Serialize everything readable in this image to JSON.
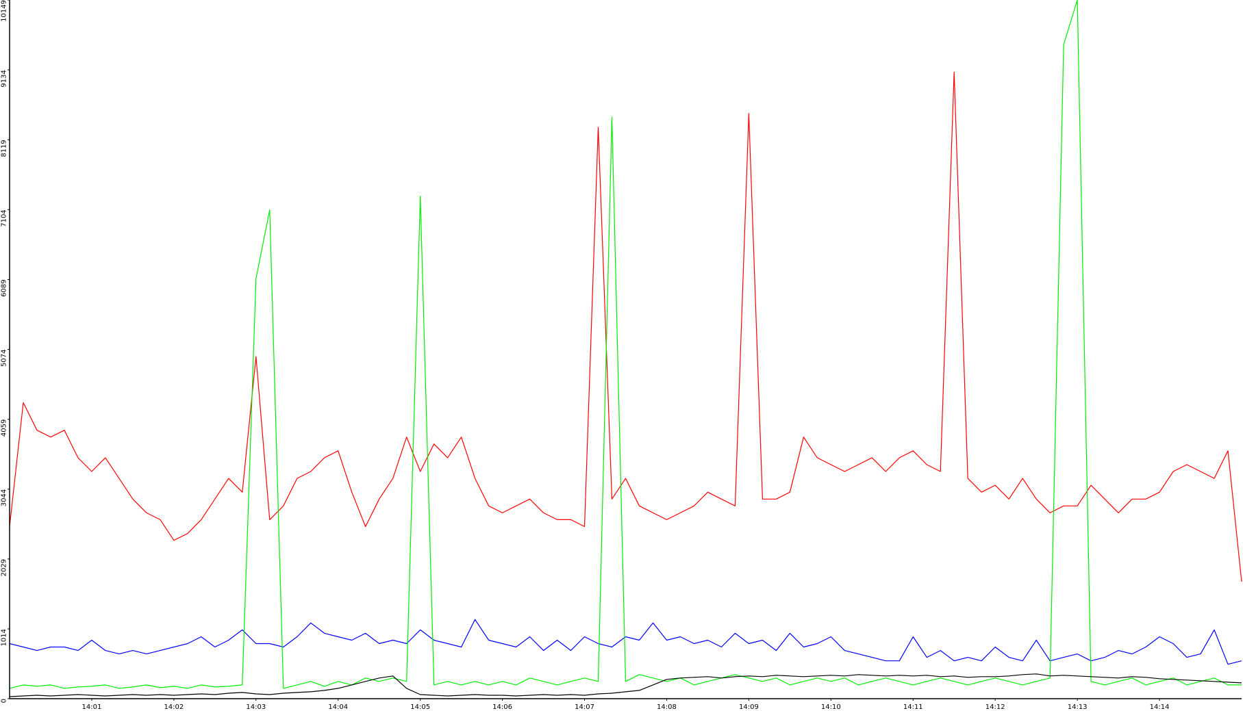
{
  "chart_data": {
    "type": "line",
    "categories": [
      null,
      null,
      null,
      null,
      null,
      null,
      "14:01",
      null,
      null,
      null,
      null,
      null,
      "14:02",
      null,
      null,
      null,
      null,
      null,
      "14:03",
      null,
      null,
      null,
      null,
      null,
      "14:04",
      null,
      null,
      null,
      null,
      null,
      "14:05",
      null,
      null,
      null,
      null,
      null,
      "14:06",
      null,
      null,
      null,
      null,
      null,
      "14:07",
      null,
      null,
      null,
      null,
      null,
      "14:08",
      null,
      null,
      null,
      null,
      null,
      "14:09",
      null,
      null,
      null,
      null,
      null,
      "14:10",
      null,
      null,
      null,
      null,
      null,
      "14:11",
      null,
      null,
      null,
      null,
      null,
      "14:12",
      null,
      null,
      null,
      null,
      null,
      "14:13",
      null,
      null,
      null,
      null,
      null,
      "14:14",
      null,
      null,
      null,
      null,
      null,
      null
    ],
    "ylim": [
      0,
      10149
    ],
    "yticks": [
      0,
      1014,
      2029,
      3044,
      4059,
      5074,
      6089,
      7104,
      8119,
      9134,
      10149
    ],
    "series": [
      {
        "color": "#ff0000",
        "values": [
          2500,
          4300,
          3900,
          3800,
          3900,
          3500,
          3300,
          3500,
          3200,
          2900,
          2700,
          2600,
          2300,
          2400,
          2600,
          2900,
          3200,
          3000,
          4970,
          2600,
          2800,
          3200,
          3300,
          3500,
          3600,
          3000,
          2500,
          2900,
          3200,
          3800,
          3300,
          3700,
          3500,
          3800,
          3200,
          2800,
          2700,
          2800,
          2900,
          2700,
          2600,
          2600,
          2500,
          8300,
          2900,
          3200,
          2800,
          2700,
          2600,
          2700,
          2800,
          3000,
          2900,
          2800,
          8500,
          2900,
          2900,
          3000,
          3800,
          3500,
          3400,
          3300,
          3400,
          3500,
          3300,
          3500,
          3600,
          3400,
          3300,
          9100,
          3200,
          3000,
          3100,
          2900,
          3200,
          2900,
          2700,
          2800,
          2800,
          3100,
          2900,
          2700,
          2900,
          2900,
          3000,
          3300,
          3400,
          3300,
          3200,
          3600,
          1700
        ]
      },
      {
        "color": "#0000ff",
        "values": [
          800,
          750,
          700,
          750,
          750,
          700,
          850,
          700,
          650,
          700,
          650,
          700,
          750,
          800,
          900,
          750,
          850,
          1000,
          800,
          800,
          750,
          900,
          1100,
          950,
          900,
          850,
          950,
          800,
          850,
          800,
          1000,
          850,
          800,
          750,
          1150,
          850,
          800,
          750,
          900,
          700,
          850,
          700,
          900,
          800,
          750,
          900,
          850,
          1100,
          850,
          900,
          800,
          850,
          750,
          950,
          800,
          850,
          700,
          950,
          750,
          800,
          900,
          700,
          650,
          600,
          550,
          550,
          900,
          600,
          700,
          550,
          600,
          550,
          750,
          600,
          550,
          850,
          550,
          600,
          650,
          550,
          600,
          700,
          650,
          750,
          900,
          800,
          600,
          650,
          1000,
          500,
          550
        ]
      },
      {
        "color": "#00ee00",
        "values": [
          150,
          200,
          180,
          200,
          150,
          170,
          180,
          200,
          150,
          170,
          200,
          160,
          180,
          150,
          200,
          170,
          180,
          200,
          6100,
          7100,
          150,
          200,
          250,
          180,
          250,
          200,
          300,
          250,
          300,
          250,
          7300,
          200,
          250,
          200,
          250,
          200,
          250,
          200,
          300,
          250,
          200,
          250,
          300,
          250,
          8450,
          250,
          350,
          300,
          250,
          300,
          200,
          250,
          300,
          350,
          300,
          250,
          300,
          200,
          250,
          300,
          250,
          300,
          200,
          250,
          300,
          250,
          200,
          250,
          300,
          250,
          200,
          250,
          300,
          250,
          200,
          250,
          300,
          9500,
          10149,
          250,
          200,
          250,
          300,
          200,
          250,
          300,
          200,
          250,
          300,
          200,
          200
        ]
      },
      {
        "color": "#000000",
        "values": [
          30,
          40,
          50,
          40,
          50,
          60,
          50,
          40,
          50,
          60,
          50,
          60,
          50,
          60,
          70,
          60,
          80,
          90,
          70,
          60,
          80,
          90,
          100,
          120,
          150,
          200,
          250,
          300,
          330,
          150,
          60,
          50,
          40,
          50,
          60,
          50,
          50,
          40,
          50,
          60,
          50,
          60,
          50,
          70,
          80,
          100,
          120,
          200,
          280,
          300,
          310,
          320,
          300,
          320,
          330,
          320,
          340,
          330,
          320,
          330,
          340,
          330,
          350,
          340,
          330,
          340,
          330,
          340,
          320,
          330,
          310,
          320,
          320,
          330,
          350,
          360,
          330,
          340,
          330,
          320,
          310,
          300,
          320,
          310,
          290,
          280,
          270,
          260,
          250,
          240,
          230
        ]
      }
    ]
  }
}
